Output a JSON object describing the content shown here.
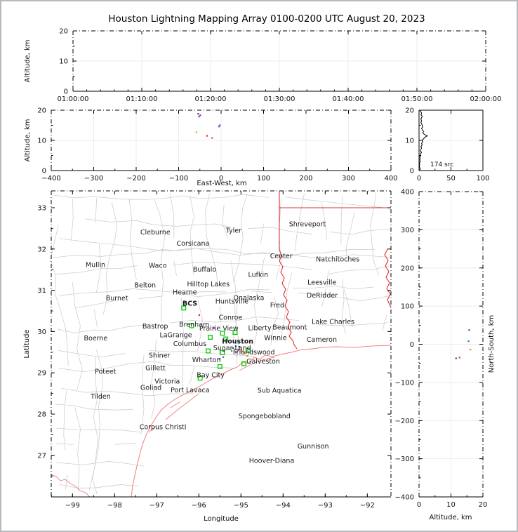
{
  "title": "Houston Lightning Mapping Array 0100-0200 UTC August 20, 2023",
  "colors": {
    "county_lines": "#c9c9c9",
    "coastline": "#f08080",
    "state_border": "#e03030",
    "station_marker": "#00cc00",
    "gridline": "#ececec",
    "houston_label": "#ff9800",
    "bcs_label": "#8b2222",
    "mullin_label": "#e89a5f",
    "offshore_label": "#2233cc",
    "frame": "#000000"
  },
  "chart_data": [
    {
      "type": "scatter",
      "panel": "altitude-vs-time",
      "ylabel": "Altitude, km",
      "x_tick_labels": [
        "01:00:00",
        "01:10:00",
        "01:20:00",
        "01:30:00",
        "01:40:00",
        "01:50:00",
        "02:00:00"
      ],
      "yticks": [
        0,
        10,
        20
      ],
      "ylim": [
        0,
        20
      ],
      "points": []
    },
    {
      "type": "scatter",
      "panel": "altitude-vs-east-west",
      "xlabel": "East-West, km",
      "ylabel": "Altitude, km",
      "xticks": [
        -400,
        -300,
        -200,
        -100,
        0,
        100,
        200,
        300,
        400
      ],
      "yticks": [
        0,
        10,
        20
      ],
      "xlim": [
        -400,
        400
      ],
      "ylim": [
        0,
        20
      ],
      "points": [
        [
          -54,
          18.8,
          "#3a3acc"
        ],
        [
          -52,
          17.9,
          "#2a4add"
        ],
        [
          -49,
          18.3,
          "#cc2626"
        ],
        [
          -5,
          14.6,
          "#6a3acc"
        ],
        [
          -3,
          15.0,
          "#3a66cc"
        ],
        [
          -58,
          12.7,
          "#e0b000"
        ],
        [
          -33,
          11.5,
          "#dd2a2a"
        ],
        [
          -21,
          10.8,
          "#ee4030"
        ]
      ]
    },
    {
      "type": "area",
      "panel": "source-count-vs-altitude",
      "annotation": "174 src",
      "xticks": [
        0,
        50,
        100
      ],
      "yticks": [
        0,
        10,
        20
      ],
      "xlim": [
        0,
        100
      ],
      "ylim": [
        0,
        20
      ],
      "profile": [
        [
          0,
          0
        ],
        [
          0.5,
          2
        ],
        [
          1,
          1
        ],
        [
          1.5,
          0.5
        ],
        [
          2,
          1
        ],
        [
          2.5,
          0.5
        ],
        [
          3,
          2
        ],
        [
          3.5,
          1
        ],
        [
          4,
          2
        ],
        [
          4.5,
          1
        ],
        [
          5,
          3
        ],
        [
          5.5,
          2
        ],
        [
          6,
          4
        ],
        [
          6.5,
          2
        ],
        [
          7,
          3
        ],
        [
          7.5,
          4
        ],
        [
          8,
          3
        ],
        [
          8.5,
          5
        ],
        [
          9,
          4
        ],
        [
          9.5,
          6
        ],
        [
          10,
          5
        ],
        [
          10.5,
          7
        ],
        [
          11,
          9
        ],
        [
          11.5,
          13
        ],
        [
          12,
          8
        ],
        [
          12.5,
          6
        ],
        [
          13,
          7
        ],
        [
          13.5,
          5
        ],
        [
          14,
          4
        ],
        [
          14.5,
          6
        ],
        [
          15,
          5
        ],
        [
          15.5,
          4
        ],
        [
          16,
          3
        ],
        [
          16.5,
          4
        ],
        [
          17,
          3
        ],
        [
          17.5,
          4
        ],
        [
          18,
          5
        ],
        [
          18.5,
          3
        ],
        [
          19,
          4
        ],
        [
          19.5,
          3
        ],
        [
          20,
          1
        ]
      ]
    },
    {
      "type": "scatter",
      "panel": "map-lon-lat",
      "xlabel": "Longitude",
      "ylabel": "Latitude",
      "xticks": [
        -99,
        -98,
        -97,
        -96,
        -95,
        -94,
        -93,
        -92
      ],
      "yticks": [
        27,
        28,
        29,
        30,
        31,
        32,
        33
      ],
      "xlim": [
        -99.51,
        -91.44
      ],
      "ylim": [
        25.99,
        33.41
      ],
      "cities": [
        {
          "name": "Cleburne",
          "lon": -97.39,
          "lat": 32.41
        },
        {
          "name": "Tyler",
          "lon": -95.36,
          "lat": 32.45
        },
        {
          "name": "Corsicana",
          "lon": -96.53,
          "lat": 32.14
        },
        {
          "name": "Shreveport",
          "lon": -93.86,
          "lat": 32.6
        },
        {
          "name": "Center",
          "lon": -94.31,
          "lat": 31.83
        },
        {
          "name": "Natchitoches",
          "lon": -93.22,
          "lat": 31.75
        },
        {
          "name": "Mullin",
          "lon": -98.69,
          "lat": 31.62,
          "color": "#e89a5f",
          "size": 10
        },
        {
          "name": "Waco",
          "lon": -97.19,
          "lat": 31.6
        },
        {
          "name": "Buffalo",
          "lon": -96.14,
          "lat": 31.51
        },
        {
          "name": "Lufkin",
          "lon": -94.83,
          "lat": 31.38
        },
        {
          "name": "Leesville",
          "lon": -93.42,
          "lat": 31.19
        },
        {
          "name": "Belton",
          "lon": -97.53,
          "lat": 31.12
        },
        {
          "name": "Hilltop Lakes",
          "lon": -96.28,
          "lat": 31.15
        },
        {
          "name": "Hearne",
          "lon": -96.62,
          "lat": 30.95
        },
        {
          "name": "DeRidder",
          "lon": -93.44,
          "lat": 30.88
        },
        {
          "name": "Burnet",
          "lon": -98.21,
          "lat": 30.81
        },
        {
          "name": "Onalaska",
          "lon": -95.18,
          "lat": 30.82
        },
        {
          "name": "Huntsville",
          "lon": -95.61,
          "lat": 30.73
        },
        {
          "name": "Fred",
          "lon": -94.31,
          "lat": 30.64
        },
        {
          "name": "BCS",
          "lon": -96.39,
          "lat": 30.68,
          "color": "#8b2222",
          "size": 12,
          "bold": true
        },
        {
          "name": "Conroe",
          "lon": -95.53,
          "lat": 30.34
        },
        {
          "name": "Lake Charles",
          "lon": -93.32,
          "lat": 30.24
        },
        {
          "name": "Bastrop",
          "lon": -97.34,
          "lat": 30.13
        },
        {
          "name": "Brenham",
          "lon": -96.47,
          "lat": 30.17
        },
        {
          "name": "Prairie View",
          "lon": -95.99,
          "lat": 30.08
        },
        {
          "name": "Liberty",
          "lon": -94.83,
          "lat": 30.09
        },
        {
          "name": "Beaumont",
          "lon": -94.25,
          "lat": 30.1
        },
        {
          "name": "LaGrange",
          "lon": -96.93,
          "lat": 29.92
        },
        {
          "name": "Boerne",
          "lon": -98.73,
          "lat": 29.84
        },
        {
          "name": "Winnie",
          "lon": -94.45,
          "lat": 29.85
        },
        {
          "name": "Cameron",
          "lon": -93.44,
          "lat": 29.81
        },
        {
          "name": "Columbus",
          "lon": -96.61,
          "lat": 29.7
        },
        {
          "name": "Houston",
          "lon": -95.45,
          "lat": 29.76,
          "color": "#ff9800",
          "size": 12,
          "bold": true
        },
        {
          "name": "Sugar Land",
          "lon": -95.66,
          "lat": 29.6
        },
        {
          "name": "Friendswood",
          "lon": -95.19,
          "lat": 29.5
        },
        {
          "name": "Galveston",
          "lon": -94.87,
          "lat": 29.28
        },
        {
          "name": "Wharton",
          "lon": -96.16,
          "lat": 29.31
        },
        {
          "name": "Shiner",
          "lon": -97.19,
          "lat": 29.42
        },
        {
          "name": "Gillett",
          "lon": -97.27,
          "lat": 29.12
        },
        {
          "name": "Poteet",
          "lon": -98.47,
          "lat": 29.03
        },
        {
          "name": "Bay City",
          "lon": -96.05,
          "lat": 28.95
        },
        {
          "name": "Victoria",
          "lon": -97.05,
          "lat": 28.79
        },
        {
          "name": "Goliad",
          "lon": -97.39,
          "lat": 28.64
        },
        {
          "name": "Port Lavaca",
          "lon": -96.67,
          "lat": 28.58
        },
        {
          "name": "Tilden",
          "lon": -98.57,
          "lat": 28.43
        },
        {
          "name": "Sub Aquatica",
          "lon": -94.61,
          "lat": 28.57,
          "color": "#2233cc",
          "size": 10
        },
        {
          "name": "Spongebobland",
          "lon": -95.06,
          "lat": 27.95,
          "color": "#2233cc",
          "size": 10
        },
        {
          "name": "Corpus Christi",
          "lon": -97.41,
          "lat": 27.69
        },
        {
          "name": "Gunnison",
          "lon": -93.66,
          "lat": 27.22,
          "color": "#2233cc",
          "size": 10
        },
        {
          "name": "Hoover-Diana",
          "lon": -94.81,
          "lat": 26.87,
          "color": "#2233cc",
          "size": 10
        }
      ],
      "stations": [
        [
          -95.73,
          29.86
        ],
        [
          -95.14,
          29.98
        ],
        [
          -95.78,
          29.53
        ],
        [
          -95.44,
          29.49
        ],
        [
          -94.93,
          29.22
        ],
        [
          -95.5,
          29.15
        ],
        [
          -95.97,
          28.87
        ],
        [
          -94.83,
          29.54
        ],
        [
          -96.36,
          30.57
        ],
        [
          -96.17,
          30.14
        ],
        [
          -95.36,
          29.82
        ],
        [
          -95.44,
          29.96
        ]
      ],
      "points": [
        [
          -95.19,
          29.6,
          "#3a3acc"
        ],
        [
          -95.12,
          29.65,
          "#00b0c8"
        ],
        [
          -95.06,
          29.56,
          "#dd2a2a"
        ],
        [
          -94.99,
          29.53,
          "#e08800"
        ],
        [
          -95.12,
          29.5,
          "#cc33cc"
        ],
        [
          -94.92,
          29.48,
          "#dd4422"
        ],
        [
          -95.04,
          29.63,
          "#2a2a99"
        ],
        [
          -95.22,
          29.53,
          "#33aa33"
        ],
        [
          -95.42,
          29.38,
          "#3366cc"
        ],
        [
          -95.51,
          29.34,
          "#8833cc"
        ],
        [
          -94.85,
          29.41,
          "#e08800"
        ],
        [
          -95.99,
          30.4,
          "#dd2a2a"
        ],
        [
          -95.64,
          30.08,
          "#cc33cc"
        ]
      ]
    },
    {
      "type": "scatter",
      "panel": "north-south-vs-altitude",
      "xlabel": "Altitude, km",
      "ylabel": "North-South, km",
      "xticks": [
        0,
        10,
        20
      ],
      "yticks": [
        400,
        300,
        200,
        100,
        0,
        -100,
        -200,
        -300,
        -400
      ],
      "xlim": [
        0,
        20
      ],
      "ylim": [
        -400,
        400
      ],
      "points": [
        [
          15.7,
          37,
          "#6a3acc"
        ],
        [
          15.5,
          8,
          "#00997a"
        ],
        [
          16.1,
          -14,
          "#e08800"
        ],
        [
          11.6,
          -37,
          "#3344cc"
        ],
        [
          12.7,
          -35,
          "#dd4422"
        ]
      ]
    }
  ]
}
